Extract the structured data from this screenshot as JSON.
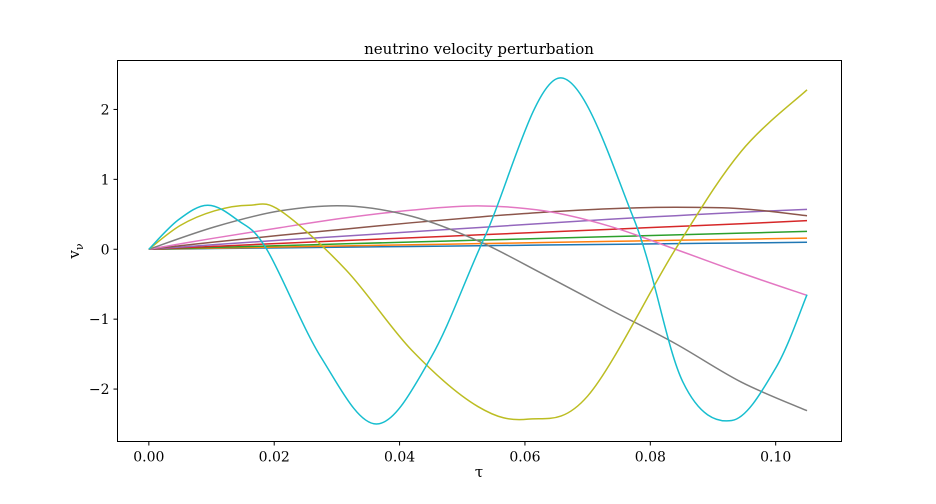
{
  "chart_data": {
    "type": "line",
    "title": "neutrino velocity perturbation",
    "xlabel": "τ",
    "ylabel": "vν",
    "ylabel_main": "v",
    "ylabel_sub": "ν",
    "xlim": [
      -0.005,
      0.1105
    ],
    "ylim": [
      -2.75,
      2.7
    ],
    "xticks": [
      0.0,
      0.02,
      0.04,
      0.06,
      0.08,
      0.1
    ],
    "xtick_labels": [
      "0.00",
      "0.02",
      "0.04",
      "0.06",
      "0.08",
      "0.10"
    ],
    "yticks": [
      -2,
      -1,
      0,
      1,
      2
    ],
    "ytick_labels": [
      "−2",
      "−1",
      "0",
      "1",
      "2"
    ],
    "grid": false,
    "series": [
      {
        "color": "#1f77b4",
        "x": [
          0.0,
          0.0105,
          0.021,
          0.0315,
          0.042,
          0.0525,
          0.063,
          0.0735,
          0.084,
          0.0945,
          0.105
        ],
        "values": [
          0.0,
          0.01,
          0.02,
          0.03,
          0.04,
          0.05,
          0.06,
          0.07,
          0.08,
          0.09,
          0.1
        ]
      },
      {
        "color": "#ff7f0e",
        "x": [
          0.0,
          0.0105,
          0.021,
          0.0315,
          0.042,
          0.0525,
          0.063,
          0.0735,
          0.084,
          0.0945,
          0.105
        ],
        "values": [
          0.0,
          0.016,
          0.032,
          0.048,
          0.064,
          0.08,
          0.096,
          0.112,
          0.128,
          0.144,
          0.16
        ]
      },
      {
        "color": "#2ca02c",
        "x": [
          0.0,
          0.0105,
          0.021,
          0.0315,
          0.042,
          0.0525,
          0.063,
          0.0735,
          0.084,
          0.0945,
          0.105
        ],
        "values": [
          0.0,
          0.026,
          0.052,
          0.078,
          0.104,
          0.13,
          0.155,
          0.18,
          0.205,
          0.23,
          0.255
        ]
      },
      {
        "color": "#d62728",
        "x": [
          0.0,
          0.0105,
          0.021,
          0.0315,
          0.042,
          0.0525,
          0.063,
          0.0735,
          0.084,
          0.0945,
          0.105
        ],
        "values": [
          0.0,
          0.042,
          0.084,
          0.125,
          0.165,
          0.205,
          0.245,
          0.285,
          0.325,
          0.365,
          0.41
        ]
      },
      {
        "color": "#9467bd",
        "x": [
          0.0,
          0.0105,
          0.021,
          0.0315,
          0.042,
          0.0525,
          0.063,
          0.0735,
          0.084,
          0.0945,
          0.105
        ],
        "values": [
          0.0,
          0.066,
          0.13,
          0.19,
          0.25,
          0.31,
          0.37,
          0.43,
          0.48,
          0.53,
          0.57
        ]
      },
      {
        "color": "#8c564b",
        "x": [
          0.0,
          0.0105,
          0.021,
          0.0315,
          0.042,
          0.0525,
          0.063,
          0.0735,
          0.084,
          0.0945,
          0.105
        ],
        "values": [
          0.0,
          0.104,
          0.2,
          0.29,
          0.38,
          0.46,
          0.53,
          0.58,
          0.6,
          0.58,
          0.48
        ]
      },
      {
        "color": "#e377c2",
        "x": [
          0.0,
          0.0105,
          0.021,
          0.0315,
          0.042,
          0.0525,
          0.063,
          0.0735,
          0.084,
          0.0945,
          0.105
        ],
        "values": [
          0.0,
          0.16,
          0.31,
          0.45,
          0.56,
          0.62,
          0.55,
          0.33,
          0.0,
          -0.34,
          -0.66
        ]
      },
      {
        "color": "#7f7f7f",
        "x": [
          0.0,
          0.0105,
          0.021,
          0.0315,
          0.042,
          0.0525,
          0.063,
          0.0735,
          0.084,
          0.0945,
          0.105
        ],
        "values": [
          0.0,
          0.32,
          0.55,
          0.62,
          0.47,
          0.12,
          -0.36,
          -0.86,
          -1.35,
          -1.9,
          -2.31
        ]
      },
      {
        "color": "#bcbd22",
        "x": [
          0.0,
          0.005,
          0.0105,
          0.016,
          0.021,
          0.0315,
          0.042,
          0.0525,
          0.0605,
          0.07,
          0.084,
          0.0945,
          0.105
        ],
        "values": [
          0.0,
          0.34,
          0.55,
          0.63,
          0.55,
          -0.3,
          -1.45,
          -2.25,
          -2.43,
          -2.1,
          0.0,
          1.4,
          2.28
        ]
      },
      {
        "color": "#17becf",
        "x": [
          0.0,
          0.0047,
          0.0094,
          0.0141,
          0.0188,
          0.0275,
          0.0363,
          0.045,
          0.0537,
          0.0655,
          0.0773,
          0.0852,
          0.093,
          0.1,
          0.105
        ],
        "values": [
          0.0,
          0.42,
          0.63,
          0.42,
          0.0,
          -1.55,
          -2.5,
          -1.55,
          0.2,
          2.45,
          0.45,
          -1.9,
          -2.45,
          -1.7,
          -0.65
        ]
      }
    ]
  }
}
